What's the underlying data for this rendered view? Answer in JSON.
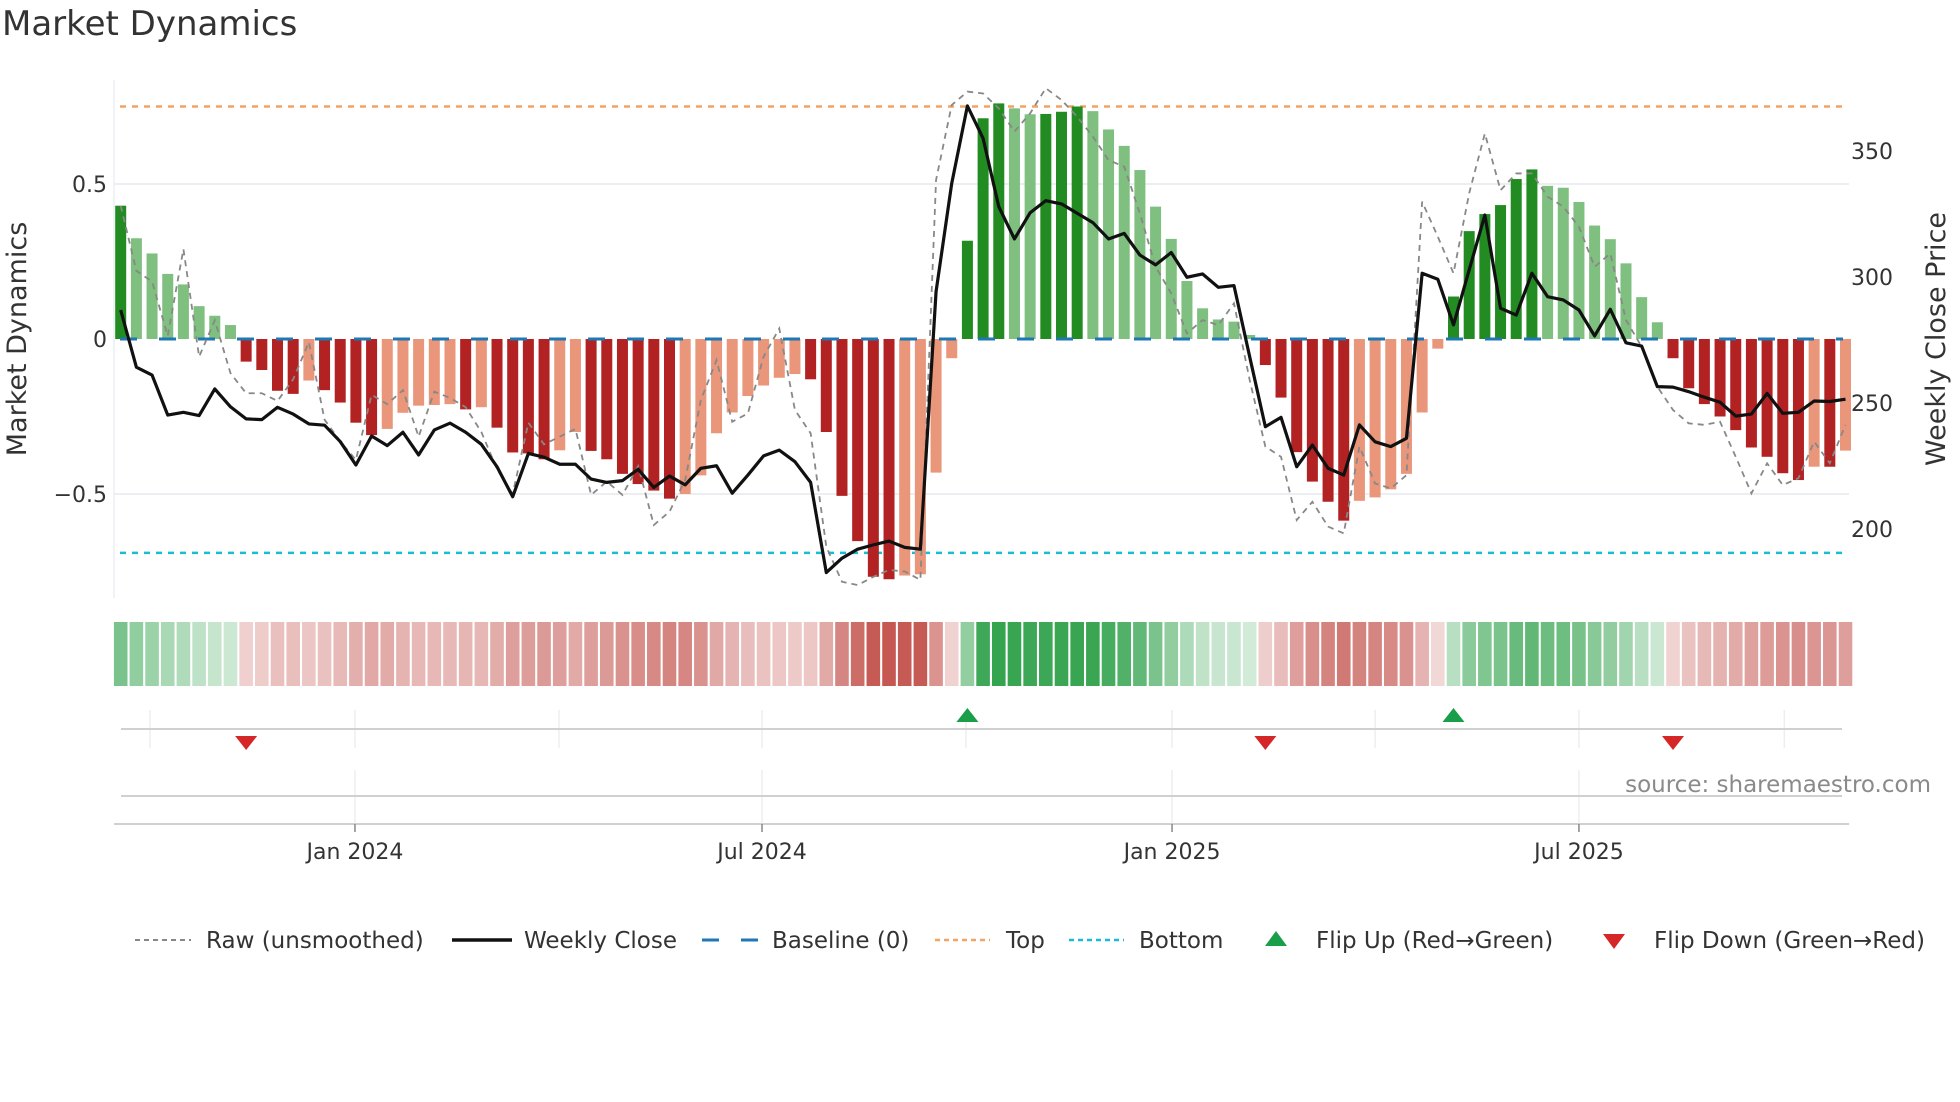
{
  "title": "Market Dynamics",
  "source": "source: sharemaestro.com",
  "colors": {
    "strong_green": "#228b22",
    "weak_green": "#7fbf7f",
    "strong_red": "#b22222",
    "weak_red": "#e9967a",
    "raw": "#888888",
    "close": "#111111",
    "baseline": "#1f77b4",
    "top": "#f4a460",
    "bottom": "#17becf",
    "flip_up": "#1a9e4a",
    "flip_down": "#d62728",
    "heat_green": "#2ca048",
    "heat_red": "#c4544e"
  },
  "chart_data": {
    "type": "bar",
    "title": "Market Dynamics",
    "xlabel": "",
    "ylabel": "Market Dynamics",
    "y2label": "Weekly Close Price",
    "ylim": [
      -0.84,
      0.88
    ],
    "y2lim": [
      172.5,
      381.5
    ],
    "yticks": [
      {
        "v": 0.5,
        "label": "0.5"
      },
      {
        "v": 0,
        "label": "0"
      },
      {
        "v": -0.5,
        "label": "−0.5"
      }
    ],
    "y2ticks": [
      {
        "v": 350,
        "label": "350"
      },
      {
        "v": 300,
        "label": "300"
      },
      {
        "v": 250,
        "label": "250"
      },
      {
        "v": 200,
        "label": "200"
      }
    ],
    "x_unit": "week index (weekly bars)",
    "xticks": [
      {
        "week": 14.94,
        "label": "Jan 2024"
      },
      {
        "week": 40.9,
        "label": "Jul 2024"
      },
      {
        "week": 67.05,
        "label": "Jan 2025"
      },
      {
        "week": 93.0,
        "label": "Jul 2025"
      }
    ],
    "minor_grid_weeks": [
      1.87,
      27.95,
      53.9,
      80.0,
      106.1
    ],
    "top_level": 0.75,
    "bottom_level": -0.69,
    "baseline": 0,
    "values": [
      0.43,
      0.325,
      0.276,
      0.21,
      0.176,
      0.106,
      0.075,
      0.045,
      -0.073,
      -0.1,
      -0.167,
      -0.177,
      -0.134,
      -0.165,
      -0.205,
      -0.27,
      -0.31,
      -0.29,
      -0.238,
      -0.215,
      -0.213,
      -0.21,
      -0.227,
      -0.22,
      -0.286,
      -0.366,
      -0.369,
      -0.388,
      -0.359,
      -0.3,
      -0.361,
      -0.388,
      -0.435,
      -0.468,
      -0.489,
      -0.515,
      -0.5,
      -0.44,
      -0.304,
      -0.237,
      -0.184,
      -0.15,
      -0.125,
      -0.113,
      -0.13,
      -0.3,
      -0.506,
      -0.652,
      -0.767,
      -0.775,
      -0.763,
      -0.759,
      -0.431,
      -0.062,
      0.317,
      0.712,
      0.76,
      0.744,
      0.725,
      0.726,
      0.733,
      0.75,
      0.735,
      0.676,
      0.623,
      0.545,
      0.427,
      0.323,
      0.187,
      0.099,
      0.063,
      0.056,
      0.013,
      -0.084,
      -0.189,
      -0.365,
      -0.46,
      -0.525,
      -0.586,
      -0.522,
      -0.511,
      -0.485,
      -0.435,
      -0.237,
      -0.031,
      0.137,
      0.348,
      0.403,
      0.432,
      0.516,
      0.547,
      0.494,
      0.488,
      0.442,
      0.366,
      0.322,
      0.244,
      0.135,
      0.054,
      -0.062,
      -0.159,
      -0.21,
      -0.25,
      -0.294,
      -0.35,
      -0.38,
      -0.433,
      -0.455,
      -0.412,
      -0.412,
      -0.36
    ],
    "strength": "DLLLLLLLDDDDLDDDDLLLLLDLDDDDLLDDDDDDLLLLLLLLDDDDDDLLLLDDDLLDDDLLLLLLLLLLLDDDDDDLLLLLLDDDDDDLLLLLLLLDDDDDDDDDLDL",
    "raw": [
      0.43,
      0.22,
      0.185,
      0.01,
      0.29,
      -0.057,
      0.06,
      -0.11,
      -0.175,
      -0.175,
      -0.2,
      -0.13,
      -0.01,
      -0.26,
      -0.33,
      -0.39,
      -0.18,
      -0.21,
      -0.165,
      -0.315,
      -0.17,
      -0.19,
      -0.22,
      -0.3,
      -0.42,
      -0.5,
      -0.27,
      -0.34,
      -0.315,
      -0.29,
      -0.503,
      -0.46,
      -0.503,
      -0.41,
      -0.6,
      -0.557,
      -0.455,
      -0.197,
      -0.068,
      -0.267,
      -0.24,
      -0.057,
      0.034,
      -0.229,
      -0.304,
      -0.67,
      -0.783,
      -0.794,
      -0.767,
      -0.745,
      -0.75,
      -0.777,
      0.513,
      0.755,
      0.798,
      0.792,
      0.744,
      0.669,
      0.728,
      0.809,
      0.771,
      0.717,
      0.653,
      0.577,
      0.556,
      0.405,
      0.233,
      0.147,
      0.018,
      0.061,
      0.045,
      0.115,
      -0.132,
      -0.347,
      -0.38,
      -0.584,
      -0.525,
      -0.605,
      -0.627,
      -0.347,
      -0.466,
      -0.482,
      -0.439,
      0.443,
      0.33,
      0.212,
      0.47,
      0.663,
      0.48,
      0.534,
      0.534,
      0.459,
      0.427,
      0.362,
      0.233,
      0.276,
      0.061,
      -0.025,
      -0.154,
      -0.229,
      -0.272,
      -0.277,
      -0.267,
      -0.38,
      -0.498,
      -0.401,
      -0.471,
      -0.449,
      -0.331,
      -0.401,
      -0.277
    ],
    "weekly_close": [
      286.9,
      264.2,
      261.1,
      245.2,
      246.3,
      245.0,
      255.6,
      248.5,
      243.7,
      243.4,
      248.3,
      245.6,
      241.7,
      241.2,
      234.7,
      225.4,
      236.9,
      233.1,
      238.4,
      229.4,
      239.3,
      242.0,
      238.4,
      233.6,
      224.7,
      212.8,
      230.0,
      228.5,
      225.7,
      225.7,
      219.8,
      218.5,
      219.2,
      223.7,
      216.5,
      221.0,
      217.5,
      224.1,
      225.1,
      214.2,
      221.4,
      229.0,
      231.3,
      226.7,
      218.5,
      182.7,
      188.4,
      192.0,
      193.7,
      195.2,
      192.7,
      192.0,
      294.2,
      337.2,
      367.9,
      355.0,
      327.9,
      315.1,
      325.5,
      330.3,
      329.0,
      325.3,
      321.6,
      315.1,
      317.3,
      308.7,
      304.8,
      309.7,
      299.9,
      301.2,
      295.9,
      296.6,
      268.4,
      240.6,
      244.3,
      224.7,
      233.3,
      224.1,
      221.4,
      241.3,
      234.6,
      232.7,
      236.0,
      301.5,
      299.1,
      281.0,
      302.8,
      324.6,
      287.6,
      284.9,
      301.5,
      292.2,
      290.9,
      286.9,
      276.6,
      287.2,
      273.9,
      272.6,
      256.5,
      256.3,
      254.5,
      252.3,
      250.3,
      244.8,
      245.6,
      253.8,
      245.9,
      246.3,
      250.8,
      250.6,
      251.5
    ],
    "flips": [
      {
        "week": 8,
        "dir": "down"
      },
      {
        "week": 54,
        "dir": "up"
      },
      {
        "week": 73,
        "dir": "down"
      },
      {
        "week": 85,
        "dir": "up"
      },
      {
        "week": 99,
        "dir": "down"
      }
    ],
    "legend_position": "bottom",
    "legend": [
      "Raw (unsmoothed)",
      "Weekly Close",
      "Baseline (0)",
      "Top",
      "Bottom",
      "Flip Up (Red→Green)",
      "Flip Down (Green→Red)"
    ]
  }
}
